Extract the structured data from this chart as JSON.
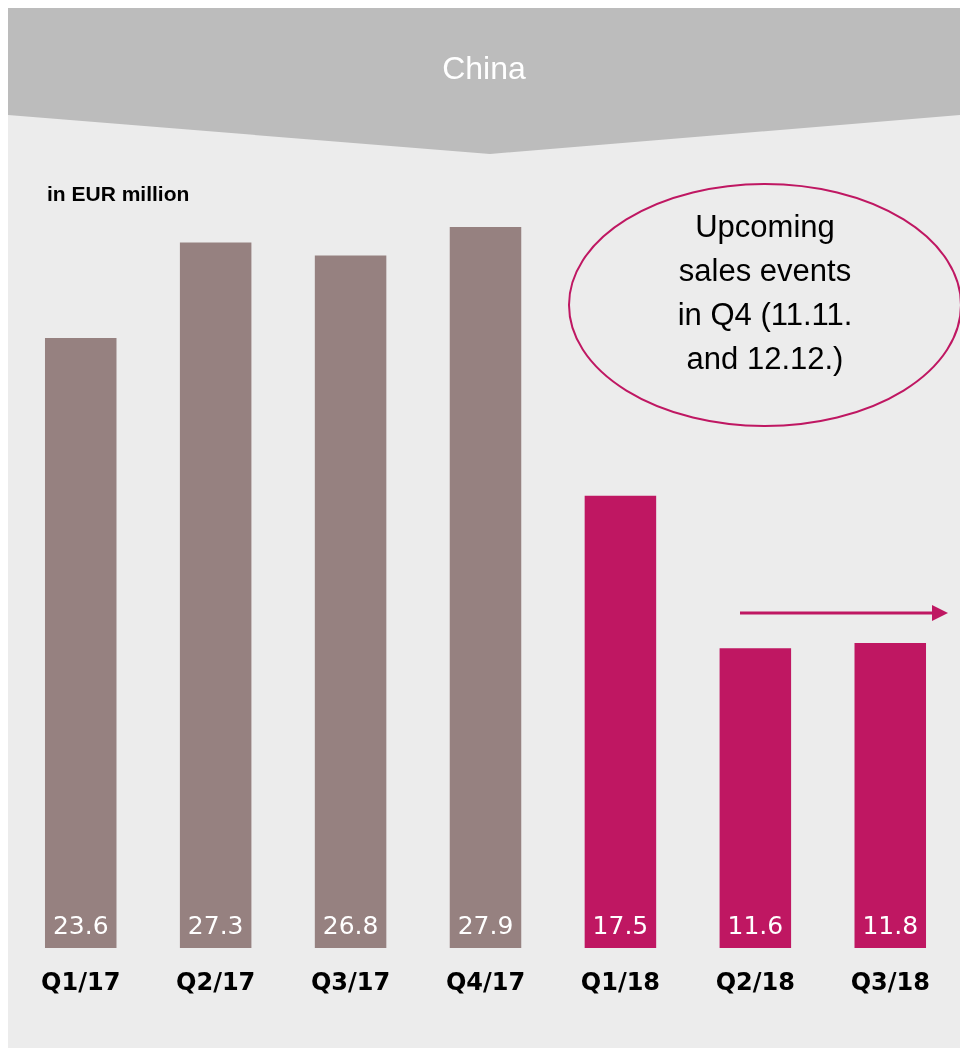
{
  "chart_data": {
    "type": "bar",
    "title": "China",
    "subtitle": "in EUR million",
    "categories": [
      "Q1/17",
      "Q2/17",
      "Q3/17",
      "Q4/17",
      "Q1/18",
      "Q2/18",
      "Q3/18"
    ],
    "values": [
      23.6,
      27.3,
      26.8,
      27.9,
      17.5,
      11.6,
      11.8
    ],
    "colors": [
      "#968180",
      "#968180",
      "#968180",
      "#968180",
      "#bf1762",
      "#bf1762",
      "#bf1762"
    ],
    "data_labels": true,
    "annotations": [
      "Upcoming sales events in Q4 (11.11. and 12.12.)"
    ]
  }
}
